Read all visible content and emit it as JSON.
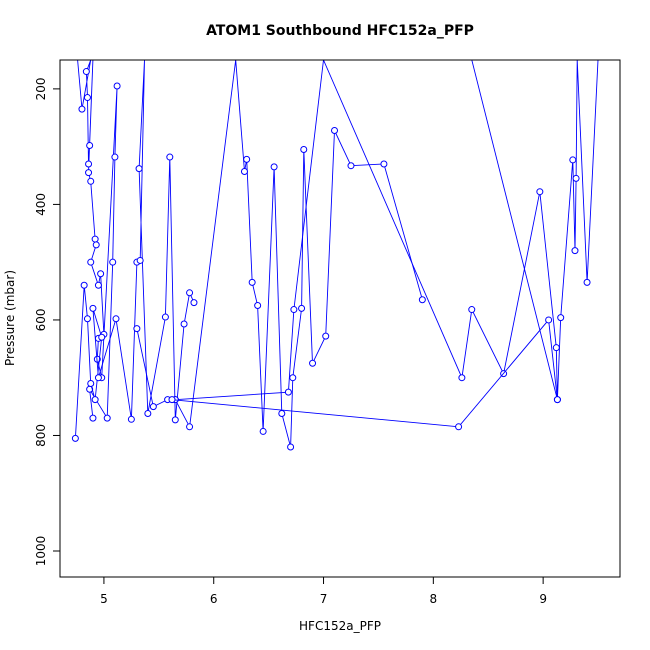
{
  "chart_data": {
    "type": "scatter",
    "title": "ATOM1 Southbound HFC152a_PFP",
    "xlabel": "HFC152a_PFP",
    "ylabel": "Pressure (mbar)",
    "xlim": [
      4.6,
      9.7
    ],
    "ylim": [
      1045,
      150
    ],
    "y_reversed": true,
    "xticks": [
      5,
      6,
      7,
      8,
      9
    ],
    "yticks": [
      200,
      400,
      600,
      800,
      1000
    ],
    "grid": false,
    "legend": "none",
    "line_color": "#0000ff",
    "marker_color": "#0000ff",
    "series": [
      {
        "x": [
          4.76,
          4.8,
          4.88,
          4.84,
          4.85,
          4.86,
          4.87,
          4.9,
          4.86,
          4.88,
          4.92,
          4.93,
          4.88,
          4.95,
          4.97,
          5.0,
          4.95,
          4.94,
          4.98,
          5.12,
          5.1,
          5.08,
          5.03,
          4.87,
          4.9
        ],
        "y": [
          150,
          235,
          150,
          170,
          215,
          330,
          298,
          150,
          345,
          360,
          460,
          470,
          500,
          540,
          520,
          625,
          632,
          668,
          700,
          195,
          318,
          500,
          770,
          720,
          770
        ]
      },
      {
        "x": [
          4.74,
          4.82,
          4.85,
          4.88,
          4.92,
          4.98,
          4.9,
          4.95,
          5.11,
          5.25,
          5.3,
          5.33,
          5.37,
          5.32,
          5.4,
          5.56,
          5.6,
          5.65,
          5.73,
          5.78,
          5.82
        ],
        "y": [
          805,
          540,
          598,
          710,
          738,
          630,
          580,
          700,
          598,
          772,
          500,
          497,
          150,
          338,
          762,
          595,
          318,
          773,
          607,
          553,
          570
        ]
      },
      {
        "x": [
          5.3,
          5.45,
          5.58,
          5.65,
          5.78,
          6.2,
          6.28,
          6.3,
          6.35,
          6.4,
          6.45,
          6.55,
          6.62,
          6.7,
          6.72,
          6.8,
          6.82,
          6.9,
          7.02,
          7.1,
          7.25,
          7.55,
          7.9
        ],
        "y": [
          615,
          750,
          738,
          738,
          785,
          150,
          343,
          322,
          535,
          575,
          793,
          335,
          762,
          820,
          700,
          580,
          305,
          675,
          628,
          272,
          333,
          330,
          565
        ]
      },
      {
        "x": [
          5.65,
          6.68,
          6.73,
          7.0,
          8.26,
          8.35,
          8.64,
          8.97,
          9.12,
          9.13,
          9.16,
          9.27,
          9.29,
          9.3,
          9.31,
          9.4,
          9.5
        ],
        "y": [
          738,
          725,
          582,
          150,
          700,
          582,
          693,
          378,
          648,
          738,
          596,
          323,
          480,
          355,
          150,
          535,
          150
        ]
      },
      {
        "x": [
          5.62,
          8.23,
          9.05,
          9.13,
          8.35,
          7.85,
          7.3,
          6.95,
          6.6
        ],
        "y": [
          738,
          785,
          600,
          738,
          150,
          150,
          150,
          150,
          150
        ]
      }
    ]
  }
}
